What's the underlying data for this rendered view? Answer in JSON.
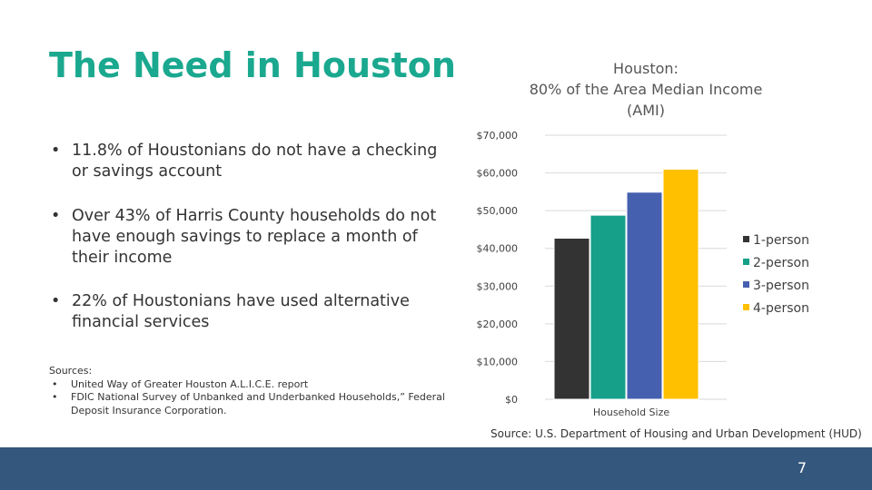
{
  "slide": {
    "title": "The Need in Houston",
    "bullet_marker": "•",
    "bullets": [
      "11.8% of Houstonians do not have a checking or savings account",
      "Over 43% of Harris County households do not have enough savings to replace a month of their income",
      "22% of Houstonians have used alternative financial services"
    ],
    "sources_label": "Sources:",
    "sources": [
      "United Way of Greater Houston A.L.I.C.E. report",
      "FDIC National Survey of Unbanked and Underbanked Households,” Federal Deposit Insurance Corporation."
    ],
    "chart_source": "Source: U.S. Department of Housing and Urban Development (HUD)",
    "page_number": "7"
  },
  "chart_data": {
    "type": "bar",
    "title_lines": [
      "Houston:",
      "80% of the Area Median Income",
      "(AMI)"
    ],
    "xlabel": "Household Size",
    "ylabel": "",
    "ylim": [
      0,
      70000
    ],
    "yticks": [
      0,
      10000,
      20000,
      30000,
      40000,
      50000,
      60000,
      70000
    ],
    "ytick_labels": [
      "$0",
      "$10,000",
      "$20,000",
      "$30,000",
      "$40,000",
      "$50,000",
      "$60,000",
      "$70,000"
    ],
    "grid": true,
    "legend_position": "right",
    "series": [
      {
        "name": "1-person",
        "values": [
          42700
        ],
        "color": "#333333"
      },
      {
        "name": "2-person",
        "values": [
          48800
        ],
        "color": "#16a08a"
      },
      {
        "name": "3-person",
        "values": [
          54900
        ],
        "color": "#4660b0"
      },
      {
        "name": "4-person",
        "values": [
          61000
        ],
        "color": "#ffc000"
      }
    ],
    "colors": {
      "grid": "#d9d9d9",
      "axis_text": "#404040"
    }
  },
  "theme": {
    "title_color": "#1aa88f",
    "footer_color": "#34577e"
  }
}
